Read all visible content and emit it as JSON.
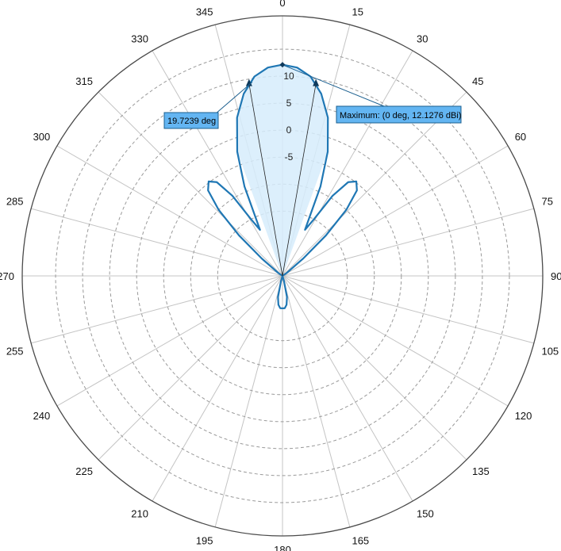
{
  "chart_data": {
    "type": "polar",
    "angular_ticks": [
      "0",
      "15",
      "30",
      "45",
      "60",
      "75",
      "90",
      "105",
      "120",
      "135",
      "150",
      "165",
      "180",
      "195",
      "210",
      "225",
      "240",
      "255",
      "270",
      "285",
      "300",
      "315",
      "330",
      "345"
    ],
    "radial_ticks": [
      {
        "value": 10,
        "label": "10"
      },
      {
        "value": 5,
        "label": "5"
      },
      {
        "value": 0,
        "label": "0"
      },
      {
        "value": -5,
        "label": "-5"
      }
    ],
    "rlim": [
      -27,
      20
    ],
    "angle_zero": "top",
    "angle_direction": "clockwise",
    "grid": true,
    "series": [
      {
        "color": "#1f77b4",
        "points": [
          [
            -180,
            -21.0
          ],
          [
            -176,
            -21.0
          ],
          [
            -172,
            -21.6
          ],
          [
            -168,
            -23.0
          ],
          [
            -164,
            -26.0
          ],
          [
            -160,
            -27.0
          ],
          [
            -150,
            -27.0
          ],
          [
            -140,
            -27.0
          ],
          [
            -130,
            -27.0
          ],
          [
            -120,
            -27.0
          ],
          [
            -110,
            -27.0
          ],
          [
            -100,
            -27.0
          ],
          [
            -90,
            -27.0
          ],
          [
            -80,
            -27.0
          ],
          [
            -70,
            -27.0
          ],
          [
            -60,
            -27.0
          ],
          [
            -55,
            -26.0
          ],
          [
            -50,
            -22.0
          ],
          [
            -47,
            -16.0
          ],
          [
            -44,
            -10.0
          ],
          [
            -41,
            -6.0
          ],
          [
            -38,
            -4.8
          ],
          [
            -35,
            -5.8
          ],
          [
            -32,
            -9.5
          ],
          [
            -29,
            -15.0
          ],
          [
            -26,
            -17.5
          ],
          [
            -23,
            -9.0
          ],
          [
            -20,
            -2.5
          ],
          [
            -16,
            3.5
          ],
          [
            -12,
            7.5
          ],
          [
            -8,
            10.3
          ],
          [
            -4,
            11.7
          ],
          [
            0,
            12.1276
          ],
          [
            4,
            11.7
          ],
          [
            8,
            10.3
          ],
          [
            12,
            7.5
          ],
          [
            16,
            3.5
          ],
          [
            20,
            -2.5
          ],
          [
            23,
            -9.0
          ],
          [
            26,
            -17.5
          ],
          [
            29,
            -15.0
          ],
          [
            32,
            -9.5
          ],
          [
            35,
            -5.8
          ],
          [
            38,
            -4.8
          ],
          [
            41,
            -6.0
          ],
          [
            44,
            -10.0
          ],
          [
            47,
            -16.0
          ],
          [
            50,
            -22.0
          ],
          [
            55,
            -26.0
          ],
          [
            60,
            -27.0
          ],
          [
            70,
            -27.0
          ],
          [
            80,
            -27.0
          ],
          [
            90,
            -27.0
          ],
          [
            100,
            -27.0
          ],
          [
            110,
            -27.0
          ],
          [
            120,
            -27.0
          ],
          [
            130,
            -27.0
          ],
          [
            140,
            -27.0
          ],
          [
            150,
            -27.0
          ],
          [
            160,
            -27.0
          ],
          [
            164,
            -26.0
          ],
          [
            168,
            -23.0
          ],
          [
            172,
            -21.6
          ],
          [
            176,
            -21.0
          ],
          [
            180,
            -21.0
          ]
        ]
      }
    ],
    "beamwidth": {
      "label": "19.7239 deg",
      "angles": [
        -9.86,
        9.86
      ],
      "level": 9.1276
    },
    "maximum": {
      "label": "Maximum: (0 deg, 12.1276 dBi)",
      "angle": 0,
      "value": 12.1276
    },
    "colors": {
      "line": "#1f77b4",
      "fill": "#d6ecfb",
      "callout_fill": "#63b5f2",
      "callout_border": "#1b5f8f",
      "grid": "#c4c4c4",
      "outer_circle": "#4a4a4a",
      "marker": "#0f3a5c"
    }
  }
}
